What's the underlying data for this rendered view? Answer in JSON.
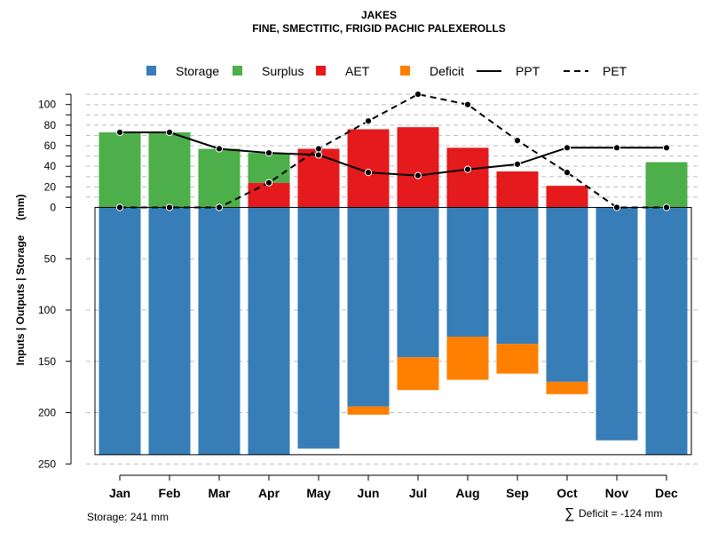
{
  "chart_data": {
    "type": "bar",
    "title": "JAKES",
    "subtitle": "FINE, SMECTITIC, FRIGID PACHIC PALEXEROLLS",
    "ylabel": "Inputs | Outputs | Storage     (mm)",
    "categories": [
      "Jan",
      "Feb",
      "Mar",
      "Apr",
      "May",
      "Jun",
      "Jul",
      "Aug",
      "Sep",
      "Oct",
      "Nov",
      "Dec"
    ],
    "upper_ticks": [
      "0",
      "20",
      "40",
      "60",
      "80",
      "100"
    ],
    "lower_ticks": [
      "50",
      "100",
      "150",
      "200",
      "250"
    ],
    "upper_tick_values": [
      0,
      20,
      40,
      60,
      80,
      100
    ],
    "lower_tick_values": [
      50,
      100,
      150,
      200,
      250
    ],
    "ylim_upper": [
      0,
      110
    ],
    "ylim_lower": [
      0,
      260
    ],
    "legend": [
      {
        "label": "Storage",
        "type": "box",
        "color": "#377eb8"
      },
      {
        "label": "Surplus",
        "type": "box",
        "color": "#4daf4a"
      },
      {
        "label": "AET",
        "type": "box",
        "color": "#e41a1c"
      },
      {
        "label": "Deficit",
        "type": "box",
        "color": "#ff7f00"
      },
      {
        "label": "PPT",
        "type": "solid",
        "color": "#000000"
      },
      {
        "label": "PET",
        "type": "dashed",
        "color": "#000000"
      }
    ],
    "series": [
      {
        "name": "Surplus",
        "color": "#4daf4a",
        "values": [
          73,
          73,
          57,
          29,
          0,
          0,
          0,
          0,
          0,
          0,
          0,
          44
        ]
      },
      {
        "name": "AET",
        "color": "#e41a1c",
        "values": [
          0,
          0,
          0,
          24,
          57,
          76,
          78,
          58,
          35,
          21,
          0,
          0
        ]
      },
      {
        "name": "Storage",
        "color": "#377eb8",
        "values": [
          241,
          241,
          241,
          241,
          235,
          194,
          146,
          126,
          133,
          170,
          227,
          241
        ]
      },
      {
        "name": "Deficit",
        "color": "#ff7f00",
        "values": [
          0,
          0,
          0,
          0,
          0,
          8,
          32,
          42,
          29,
          12,
          0,
          0
        ]
      },
      {
        "name": "PPT",
        "color": "#000000",
        "values": [
          73,
          73,
          57,
          53,
          51,
          34,
          31,
          37,
          42,
          58,
          58,
          58
        ]
      },
      {
        "name": "PET",
        "color": "#000000",
        "values": [
          0,
          0,
          0,
          24,
          57,
          84,
          110,
          100,
          65,
          34,
          0,
          0
        ]
      }
    ]
  },
  "footer": {
    "storage_note": "Storage: 241 mm",
    "deficit_note": "Deficit = -124 mm",
    "sum_symbol": "∑"
  }
}
